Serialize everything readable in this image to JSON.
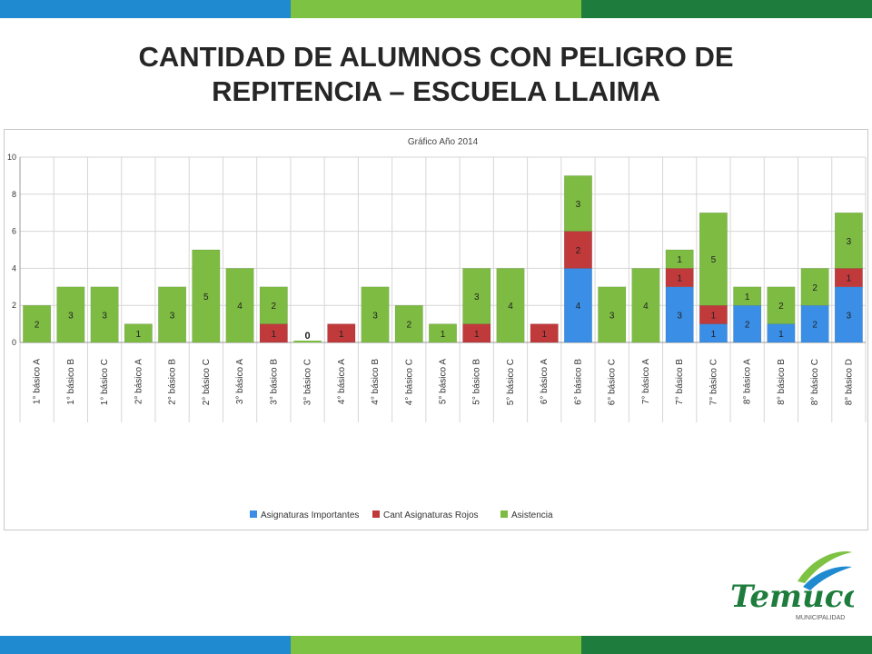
{
  "slide": {
    "title_line1": "CANTIDAD DE ALUMNOS CON PELIGRO DE",
    "title_line2": "REPITENCIA – ESCUELA LLAIMA"
  },
  "colors": {
    "band_blue": "#1f8ad0",
    "band_lime": "#7dc242",
    "band_green": "#1e7c3c"
  },
  "logo": {
    "name": "Temuco",
    "subtitle": "MUNICIPALIDAD"
  },
  "chart_data": {
    "type": "bar",
    "stacked": true,
    "title": "Gráfico Año 2014",
    "categories": [
      "1° básico A",
      "1° básico B",
      "1° básico C",
      "2° básico A",
      "2° básico B",
      "2° básico C",
      "3° básico A",
      "3° básico B",
      "3° básico C",
      "4° básico A",
      "4° básico B",
      "4° básico C",
      "5° básico A",
      "5° básico B",
      "5° básico C",
      "6° básico A",
      "6° básico B",
      "6° básico C",
      "7° básico A",
      "7° básico B",
      "7° básico C",
      "8° básico A",
      "8° básico B",
      "8° básico C",
      "8° básico D"
    ],
    "series": [
      {
        "name": "Asignaturas Importantes",
        "color": "#3a8ee6",
        "values": [
          0,
          0,
          0,
          0,
          0,
          0,
          0,
          0,
          0,
          0,
          0,
          0,
          0,
          0,
          0,
          0,
          4,
          0,
          0,
          3,
          1,
          2,
          1,
          2,
          3
        ]
      },
      {
        "name": "Cant Asignaturas Rojos",
        "color": "#c0393b",
        "values": [
          0,
          0,
          0,
          0,
          0,
          0,
          0,
          1,
          0,
          1,
          0,
          0,
          0,
          1,
          0,
          1,
          2,
          0,
          0,
          1,
          1,
          0,
          0,
          0,
          1
        ]
      },
      {
        "name": "Asistencia",
        "color": "#7dbb42",
        "values": [
          2,
          3,
          3,
          1,
          3,
          5,
          4,
          2,
          0,
          0,
          3,
          2,
          1,
          3,
          4,
          0,
          3,
          3,
          4,
          1,
          5,
          1,
          2,
          2,
          3
        ]
      }
    ],
    "ylim": [
      0,
      10
    ],
    "yticks": [
      0,
      2,
      4,
      6,
      8,
      10
    ],
    "zero_label_category": "3° básico C",
    "zero_label": "0",
    "grid": true,
    "legend_position": "bottom"
  }
}
